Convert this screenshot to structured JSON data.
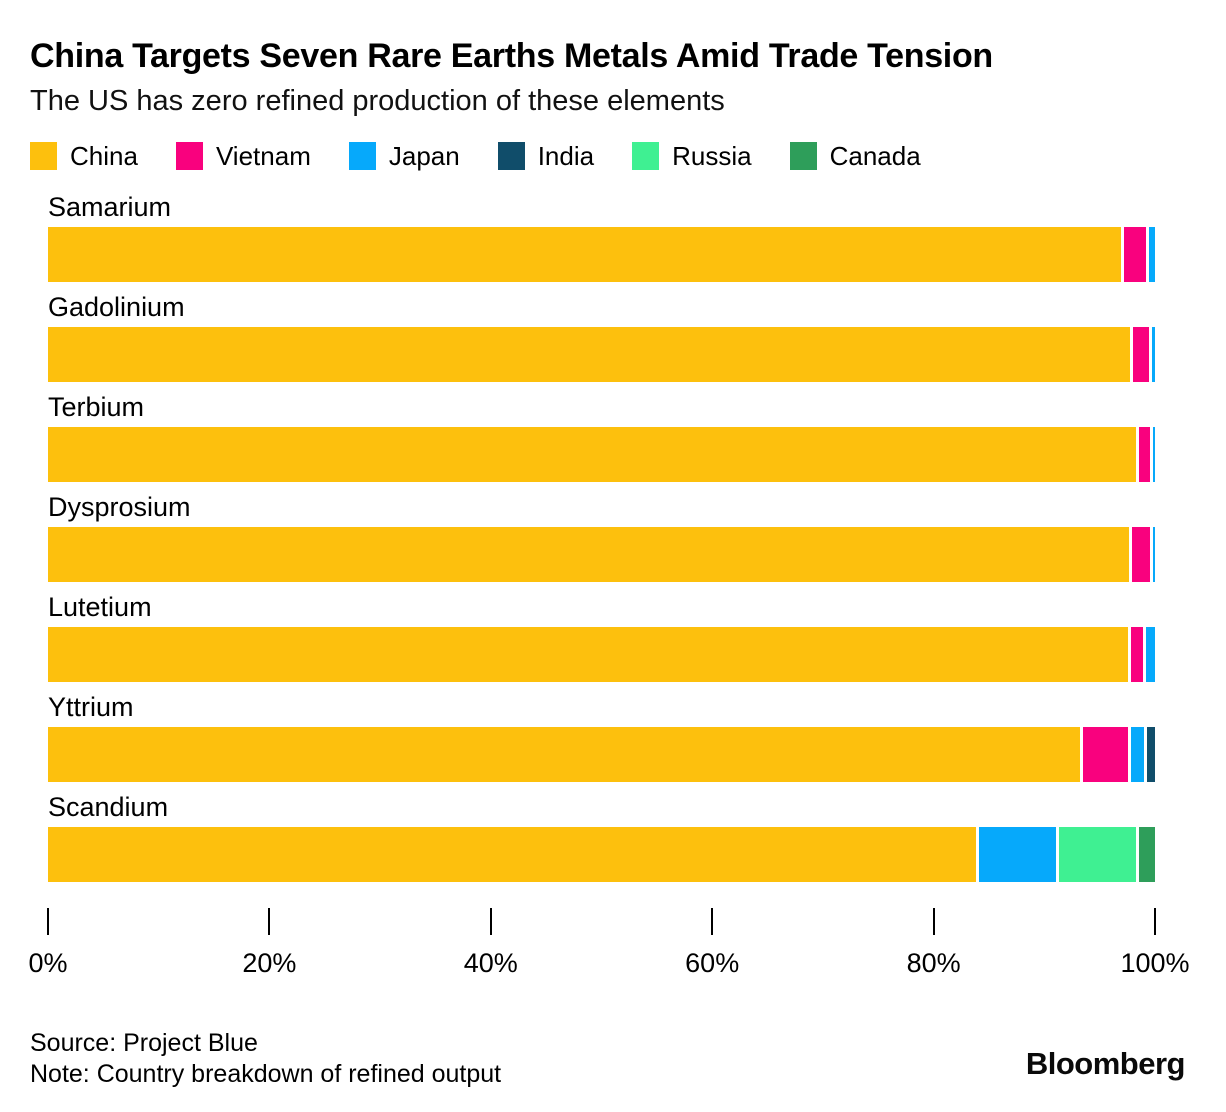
{
  "header": {
    "title": "China Targets Seven Rare Earths Metals Amid Trade Tension",
    "subtitle": "The US has zero refined production of these elements"
  },
  "legend": [
    {
      "label": "China",
      "color": "#FDC00D"
    },
    {
      "label": "Vietnam",
      "color": "#F9017E"
    },
    {
      "label": "Japan",
      "color": "#06A9FB"
    },
    {
      "label": "India",
      "color": "#104D6A"
    },
    {
      "label": "Russia",
      "color": "#3FF092"
    },
    {
      "label": "Canada",
      "color": "#2E9E5A"
    }
  ],
  "chart_data": {
    "type": "bar",
    "orientation": "horizontal",
    "stacked": true,
    "unit": "percent of refined output",
    "categories": [
      "Samarium",
      "Gadolinium",
      "Terbium",
      "Dysprosium",
      "Lutetium",
      "Yttrium",
      "Scandium"
    ],
    "series": [
      {
        "name": "China",
        "color": "#FDC00D",
        "values": [
          97.5,
          98.3,
          98.8,
          98.2,
          98.1,
          94.0,
          84.5
        ]
      },
      {
        "name": "Vietnam",
        "color": "#F9017E",
        "values": [
          2.0,
          1.4,
          1.0,
          1.6,
          1.1,
          4.1,
          0
        ]
      },
      {
        "name": "Japan",
        "color": "#06A9FB",
        "values": [
          0.5,
          0.3,
          0.2,
          0.2,
          0.8,
          1.2,
          7.0
        ]
      },
      {
        "name": "India",
        "color": "#104D6A",
        "values": [
          0,
          0,
          0,
          0,
          0,
          0.7,
          0
        ]
      },
      {
        "name": "Russia",
        "color": "#3FF092",
        "values": [
          0,
          0,
          0,
          0,
          0,
          0,
          7.0
        ]
      },
      {
        "name": "Canada",
        "color": "#2E9E5A",
        "values": [
          0,
          0,
          0,
          0,
          0,
          0,
          1.5
        ]
      }
    ],
    "xlim": [
      0,
      100
    ],
    "x_ticks": [
      "0%",
      "20%",
      "40%",
      "60%",
      "80%",
      "100%"
    ],
    "grid": false,
    "legend_position": "top"
  },
  "footer": {
    "source": "Source: Project Blue",
    "note": "Note: Country breakdown of refined output",
    "brand": "Bloomberg"
  }
}
